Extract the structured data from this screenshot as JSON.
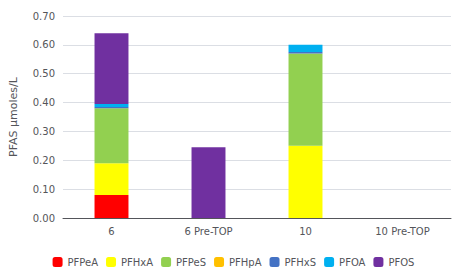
{
  "chart_data": {
    "type": "bar",
    "stacked": true,
    "categories": [
      "6",
      "6 Pre-TOP",
      "10",
      "10 Pre-TOP"
    ],
    "series": [
      {
        "name": "PFPeA",
        "color": "#FF0000",
        "values": [
          0.08,
          0.0,
          0.0,
          0.0
        ]
      },
      {
        "name": "PFHxA",
        "color": "#FFFF00",
        "values": [
          0.11,
          0.0,
          0.25,
          0.0
        ]
      },
      {
        "name": "PFPeS",
        "color": "#92D050",
        "values": [
          0.19,
          0.0,
          0.32,
          0.0
        ]
      },
      {
        "name": "PFHpA",
        "color": "#FFC000",
        "values": [
          0.0,
          0.0,
          0.0,
          0.0
        ]
      },
      {
        "name": "PFHxS",
        "color": "#4472C4",
        "values": [
          0.005,
          0.0,
          0.005,
          0.0
        ]
      },
      {
        "name": "PFOA",
        "color": "#00B0F0",
        "values": [
          0.01,
          0.0,
          0.025,
          0.0
        ]
      },
      {
        "name": "PFOS",
        "color": "#7030A0",
        "values": [
          0.245,
          0.245,
          0.0,
          0.0
        ]
      }
    ],
    "ylabel": "PFAS μmoles/L",
    "ylim": [
      0,
      0.7
    ],
    "yticks": [
      {
        "value": 0,
        "label": "0.00"
      },
      {
        "value": 0.1,
        "label": "0.10"
      },
      {
        "value": 0.2,
        "label": "0.20"
      },
      {
        "value": 0.3,
        "label": "0.30"
      },
      {
        "value": 0.4,
        "label": "0.40"
      },
      {
        "value": 0.5,
        "label": "0.50"
      },
      {
        "value": 0.6,
        "label": "0.60"
      },
      {
        "value": 0.7,
        "label": "0.70"
      }
    ],
    "grid": true,
    "legend": "bottom"
  }
}
